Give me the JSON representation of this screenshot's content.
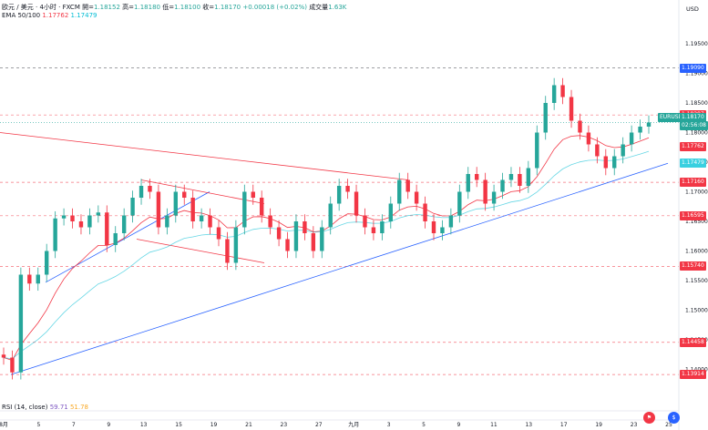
{
  "header": {
    "symbol": "欧元 / 美元 · 4小时 · FXCM",
    "open_label": "開=",
    "open": "1.18152",
    "high_label": "高=",
    "high": "1.18180",
    "low_label": "低=",
    "low": "1.18100",
    "close_label": "收=",
    "close": "1.18170",
    "change": "+0.00018 (+0.02%)",
    "volume_label": "成交量",
    "volume": "1.63K",
    "ema_label": "EMA 50/100",
    "ema50": "1.17762",
    "ema100": "1.17479"
  },
  "axis": {
    "currency": "USD",
    "tags": [
      {
        "text": "1.19090",
        "color": "#2962ff"
      },
      {
        "text": "1.18297",
        "color": "#f23645"
      },
      {
        "text": "EURUSD",
        "color": "#26a69a"
      },
      {
        "text": "1.18170",
        "color": "#26a69a"
      },
      {
        "text": "02:56:08",
        "color": "#26a69a"
      },
      {
        "text": "1.17762",
        "color": "#f23645"
      },
      {
        "text": "1.17479",
        "color": "#3ad0e0"
      },
      {
        "text": "1.17160",
        "color": "#f23645"
      },
      {
        "text": "1.16595",
        "color": "#f23645"
      },
      {
        "text": "1.15740",
        "color": "#f23645"
      },
      {
        "text": "1.14458",
        "color": "#f23645"
      },
      {
        "text": "1.13914",
        "color": "#f23645"
      }
    ]
  },
  "rsi": {
    "label": "RSI (14, close)",
    "v1": "59.71",
    "v2": "51.78"
  },
  "icons": {
    "left": "flag-icon",
    "right": "currency-icon"
  },
  "colors": {
    "up": "#26a69a",
    "down": "#f23645",
    "ema50": "#f23645",
    "ema100": "#00bcd4",
    "trend_blue": "#2962ff",
    "level_red": "#f23645"
  },
  "chart_data": {
    "type": "candlestick",
    "symbol": "EURUSD",
    "timeframe": "4H",
    "y_ticks": [
      1.195,
      1.19,
      1.185,
      1.18,
      1.175,
      1.17,
      1.165,
      1.16,
      1.155,
      1.15,
      1.145,
      1.14
    ],
    "x_ticks": [
      "8月",
      "5",
      "7",
      "9",
      "13",
      "15",
      "19",
      "21",
      "23",
      "27",
      "九月",
      "3",
      "5",
      "9",
      "11",
      "13",
      "17",
      "19",
      "23",
      "25"
    ],
    "ylim": [
      1.135,
      1.199
    ],
    "levels": [
      1.1909,
      1.18297,
      1.1716,
      1.16595,
      1.1574,
      1.14458,
      1.13914
    ],
    "ema50_last": 1.17762,
    "ema100_last": 1.17479,
    "last_close": 1.1817,
    "closes": [
      1.142,
      1.1395,
      1.156,
      1.1545,
      1.156,
      1.16,
      1.1655,
      1.166,
      1.165,
      1.164,
      1.166,
      1.1665,
      1.161,
      1.163,
      1.166,
      1.169,
      1.171,
      1.17,
      1.164,
      1.166,
      1.17,
      1.169,
      1.165,
      1.166,
      1.164,
      1.162,
      1.158,
      1.164,
      1.17,
      1.169,
      1.166,
      1.164,
      1.162,
      1.16,
      1.165,
      1.163,
      1.16,
      1.164,
      1.168,
      1.171,
      1.17,
      1.166,
      1.164,
      1.163,
      1.165,
      1.168,
      1.172,
      1.17,
      1.168,
      1.165,
      1.163,
      1.164,
      1.166,
      1.17,
      1.173,
      1.172,
      1.168,
      1.17,
      1.172,
      1.173,
      1.171,
      1.174,
      1.18,
      1.185,
      1.188,
      1.186,
      1.182,
      1.18,
      1.178,
      1.176,
      1.174,
      1.176,
      1.178,
      1.18,
      1.181,
      1.1817
    ]
  }
}
